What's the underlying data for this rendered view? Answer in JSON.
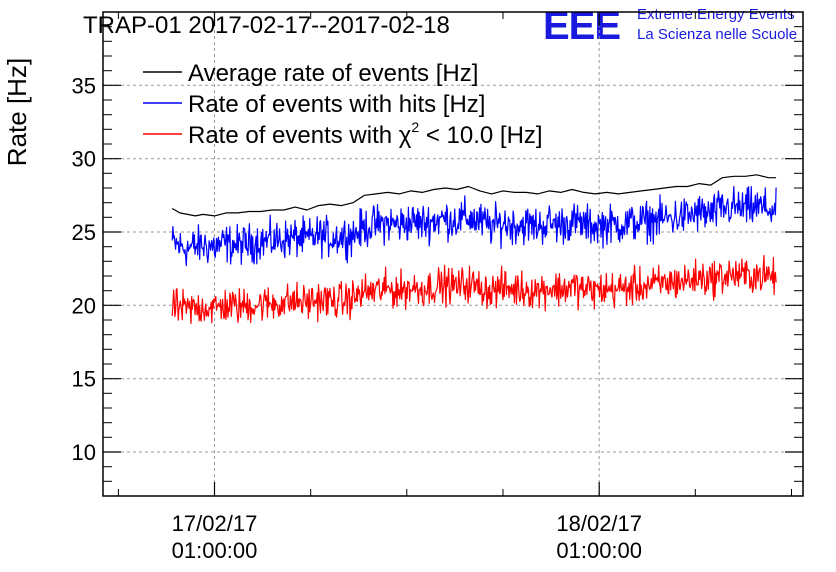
{
  "header": {
    "title": "TRAP-01 2017-02-17--2017-02-18",
    "logo_text": "EEE",
    "logo_line1": "Extreme Energy Events",
    "logo_line2": "La Scienza nelle Scuole"
  },
  "colors": {
    "average": "#000000",
    "hits": "#0000ff",
    "chi2": "#ff0000",
    "logo": "#1a1adf",
    "grid": "#9a9a9a"
  },
  "chart_data": {
    "type": "line",
    "ylabel": "Rate [Hz]",
    "xlabel": "",
    "ylim": [
      7,
      40
    ],
    "xlim": [
      -0.29,
      1.53
    ],
    "x_unit": "days since 17/02/17 01:00:00",
    "grid": true,
    "legend_position": "top-left",
    "y_ticks": [
      10,
      15,
      20,
      25,
      30,
      35
    ],
    "x_ticks": [
      {
        "x": 0,
        "line1": "17/02/17",
        "line2": "01:00:00"
      },
      {
        "x": 1,
        "line1": "18/02/17",
        "line2": "01:00:00"
      }
    ],
    "legend": [
      {
        "prefix": "Average rate of events [Hz]",
        "sup": "",
        "suffix": ""
      },
      {
        "prefix": "Rate of events with hits [Hz]",
        "sup": "",
        "suffix": ""
      },
      {
        "prefix": "Rate of events with χ",
        "sup": "2",
        "suffix": " < 10.0 [Hz]"
      }
    ],
    "series": [
      {
        "name": "Average rate of events [Hz]",
        "style": "smooth",
        "x": [
          -0.11,
          -0.09,
          -0.07,
          -0.05,
          -0.03,
          0.0,
          0.03,
          0.06,
          0.09,
          0.12,
          0.15,
          0.18,
          0.21,
          0.24,
          0.27,
          0.3,
          0.33,
          0.36,
          0.39,
          0.42,
          0.45,
          0.48,
          0.51,
          0.54,
          0.57,
          0.6,
          0.63,
          0.66,
          0.69,
          0.72,
          0.75,
          0.78,
          0.81,
          0.84,
          0.87,
          0.9,
          0.93,
          0.96,
          0.99,
          1.02,
          1.05,
          1.08,
          1.11,
          1.14,
          1.17,
          1.2,
          1.23,
          1.26,
          1.29,
          1.32,
          1.35,
          1.38,
          1.41,
          1.44,
          1.46
        ],
        "y": [
          26.6,
          26.3,
          26.2,
          26.1,
          26.2,
          26.1,
          26.3,
          26.3,
          26.4,
          26.4,
          26.5,
          26.5,
          26.7,
          26.5,
          26.8,
          26.9,
          26.8,
          27.0,
          27.5,
          27.6,
          27.7,
          27.6,
          27.8,
          27.7,
          27.9,
          28.0,
          27.9,
          28.1,
          27.8,
          27.6,
          27.8,
          27.7,
          27.7,
          27.6,
          27.8,
          27.7,
          27.9,
          27.7,
          27.6,
          27.7,
          27.6,
          27.7,
          27.8,
          27.9,
          28.0,
          28.1,
          28.1,
          28.3,
          28.2,
          28.7,
          28.8,
          28.8,
          28.9,
          28.7,
          28.7
        ]
      },
      {
        "name": "Rate of events with hits [Hz]",
        "style": "noisy",
        "x": [
          -0.11,
          -0.09,
          -0.07,
          -0.05,
          -0.03,
          0.0,
          0.03,
          0.06,
          0.09,
          0.12,
          0.15,
          0.18,
          0.21,
          0.24,
          0.27,
          0.3,
          0.33,
          0.36,
          0.39,
          0.42,
          0.45,
          0.48,
          0.51,
          0.54,
          0.57,
          0.6,
          0.63,
          0.66,
          0.69,
          0.72,
          0.75,
          0.78,
          0.81,
          0.84,
          0.87,
          0.9,
          0.93,
          0.96,
          0.99,
          1.02,
          1.05,
          1.08,
          1.11,
          1.14,
          1.17,
          1.2,
          1.23,
          1.26,
          1.29,
          1.32,
          1.35,
          1.38,
          1.41,
          1.44,
          1.46
        ],
        "y": [
          24.3,
          24.0,
          23.9,
          24.0,
          24.1,
          24.0,
          24.2,
          24.1,
          24.2,
          24.4,
          24.4,
          24.5,
          24.6,
          24.5,
          24.8,
          24.6,
          24.7,
          24.8,
          25.3,
          25.5,
          25.6,
          25.5,
          25.7,
          25.6,
          25.8,
          25.9,
          25.8,
          26.0,
          25.7,
          25.4,
          25.6,
          25.5,
          25.5,
          25.4,
          25.6,
          25.5,
          25.7,
          25.5,
          25.4,
          25.5,
          25.5,
          25.6,
          25.7,
          25.8,
          25.9,
          26.0,
          26.1,
          26.3,
          26.2,
          26.6,
          26.7,
          26.6,
          26.7,
          26.6,
          26.4
        ],
        "spread": 1.3
      },
      {
        "name": "Rate of events with χ2 < 10.0 [Hz]",
        "style": "noisy",
        "x": [
          -0.11,
          -0.09,
          -0.07,
          -0.05,
          -0.03,
          0.0,
          0.03,
          0.06,
          0.09,
          0.12,
          0.15,
          0.18,
          0.21,
          0.24,
          0.27,
          0.3,
          0.33,
          0.36,
          0.39,
          0.42,
          0.45,
          0.48,
          0.51,
          0.54,
          0.57,
          0.6,
          0.63,
          0.66,
          0.69,
          0.72,
          0.75,
          0.78,
          0.81,
          0.84,
          0.87,
          0.9,
          0.93,
          0.96,
          0.99,
          1.02,
          1.05,
          1.08,
          1.11,
          1.14,
          1.17,
          1.2,
          1.23,
          1.26,
          1.29,
          1.32,
          1.35,
          1.38,
          1.41,
          1.44,
          1.46
        ],
        "y": [
          20.0,
          19.8,
          19.7,
          19.8,
          19.9,
          19.8,
          20.0,
          19.9,
          20.0,
          20.1,
          20.1,
          20.2,
          20.3,
          20.2,
          20.4,
          20.3,
          20.3,
          20.5,
          20.9,
          21.0,
          21.1,
          21.0,
          21.2,
          21.1,
          21.3,
          21.4,
          21.3,
          21.5,
          21.2,
          21.0,
          21.2,
          21.1,
          21.1,
          21.0,
          21.2,
          21.1,
          21.3,
          21.1,
          21.0,
          21.1,
          21.1,
          21.2,
          21.3,
          21.4,
          21.5,
          21.6,
          21.7,
          21.9,
          21.8,
          22.0,
          22.1,
          22.0,
          22.1,
          22.0,
          21.9
        ],
        "spread": 1.2
      }
    ]
  }
}
